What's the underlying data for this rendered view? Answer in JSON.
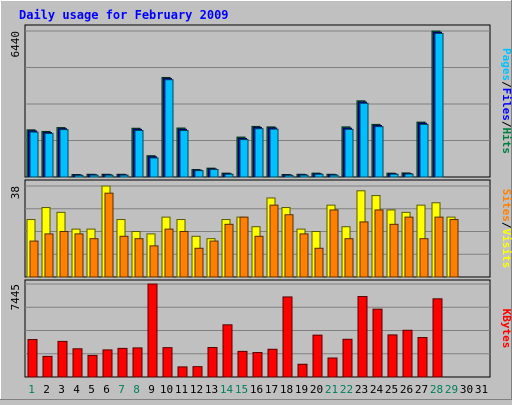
{
  "chart_data": [
    {
      "type": "bar",
      "title": "Daily usage for February 2009",
      "ymax_label": "6440",
      "ylim": [
        0,
        6440
      ],
      "grid": true,
      "legend_words": [
        "Pages",
        "Files",
        "Hits"
      ],
      "legend_seps": [
        "/",
        "/"
      ],
      "categories": [
        "1",
        "2",
        "3",
        "4",
        "5",
        "6",
        "7",
        "8",
        "9",
        "10",
        "11",
        "12",
        "13",
        "14",
        "15",
        "16",
        "17",
        "18",
        "19",
        "20",
        "21",
        "22",
        "23",
        "24",
        "25",
        "26",
        "27",
        "28",
        "29",
        "30",
        "31"
      ],
      "series": [
        {
          "name": "Hits",
          "color": "#008040",
          "values": [
            2080,
            2010,
            2180,
            110,
            120,
            120,
            120,
            2150,
            940,
            4390,
            2160,
            330,
            390,
            170,
            1760,
            2230,
            2210,
            110,
            120,
            170,
            120,
            2210,
            3360,
            2320,
            170,
            180,
            2420,
            6440,
            0,
            0,
            0
          ]
        },
        {
          "name": "Files",
          "color": "#0000ff",
          "values": [
            2030,
            1960,
            2130,
            90,
            100,
            100,
            100,
            2100,
            890,
            4340,
            2100,
            300,
            350,
            140,
            1700,
            2180,
            2160,
            90,
            100,
            140,
            100,
            2150,
            3300,
            2270,
            140,
            150,
            2370,
            6380,
            0,
            0,
            0
          ]
        },
        {
          "name": "Pages",
          "color": "#00c0ff",
          "values": [
            1980,
            1920,
            2090,
            70,
            80,
            80,
            80,
            2050,
            840,
            4290,
            2050,
            280,
            330,
            120,
            1650,
            2130,
            2110,
            70,
            80,
            120,
            80,
            2100,
            3250,
            2220,
            120,
            130,
            2320,
            6330,
            0,
            0,
            0
          ]
        }
      ]
    },
    {
      "type": "bar",
      "ymax_label": "38",
      "ylim": [
        0,
        38
      ],
      "grid": true,
      "legend_words": [
        "Sites",
        "Visits"
      ],
      "legend_seps": [
        "/"
      ],
      "categories": [
        "1",
        "2",
        "3",
        "4",
        "5",
        "6",
        "7",
        "8",
        "9",
        "10",
        "11",
        "12",
        "13",
        "14",
        "15",
        "16",
        "17",
        "18",
        "19",
        "20",
        "21",
        "22",
        "23",
        "24",
        "25",
        "26",
        "27",
        "28",
        "29",
        "30",
        "31"
      ],
      "series": [
        {
          "name": "Visits",
          "color": "#ffff00",
          "values": [
            24,
            29,
            27,
            20,
            20,
            38,
            24,
            19,
            18,
            25,
            24,
            17,
            16,
            24,
            25,
            21,
            33,
            29,
            20,
            19,
            30,
            21,
            36,
            34,
            28,
            27,
            30,
            31,
            25,
            0,
            0
          ]
        },
        {
          "name": "Sites",
          "color": "#ff8000",
          "values": [
            15,
            18,
            19,
            18,
            16,
            35,
            17,
            16,
            13,
            20,
            19,
            12,
            15,
            22,
            25,
            17,
            30,
            26,
            18,
            12,
            28,
            16,
            23,
            28,
            22,
            25,
            16,
            25,
            24,
            0,
            0
          ]
        }
      ]
    },
    {
      "type": "bar",
      "ymax_label": "7445",
      "ylim": [
        0,
        7445
      ],
      "grid": true,
      "legend_words": [
        "KBytes"
      ],
      "legend_seps": [],
      "categories": [
        "1",
        "2",
        "3",
        "4",
        "5",
        "6",
        "7",
        "8",
        "9",
        "10",
        "11",
        "12",
        "13",
        "14",
        "15",
        "16",
        "17",
        "18",
        "19",
        "20",
        "21",
        "22",
        "23",
        "24",
        "25",
        "26",
        "27",
        "28",
        "29",
        "30",
        "31"
      ],
      "series": [
        {
          "name": "KBytes",
          "color": "#ff0000",
          "values": [
            3000,
            1650,
            2850,
            2260,
            1730,
            2170,
            2290,
            2330,
            7445,
            2350,
            810,
            830,
            2360,
            4180,
            2050,
            1960,
            2220,
            6410,
            1020,
            3350,
            1520,
            3020,
            6440,
            5430,
            3370,
            3740,
            3160,
            6260,
            0,
            0,
            0
          ]
        }
      ]
    }
  ],
  "xaxis": {
    "labels": [
      "1",
      "2",
      "3",
      "4",
      "5",
      "6",
      "7",
      "8",
      "9",
      "10",
      "11",
      "12",
      "13",
      "14",
      "15",
      "16",
      "17",
      "18",
      "19",
      "20",
      "21",
      "22",
      "23",
      "24",
      "25",
      "26",
      "27",
      "28",
      "29",
      "30",
      "31"
    ],
    "weekend_days": [
      1,
      7,
      8,
      14,
      15,
      21,
      22,
      28,
      29
    ],
    "weekend_color": "#00805c",
    "weekday_color": "#000000"
  },
  "colors": {
    "background": "#c0c0c0",
    "grid": "#808080",
    "title": "#0000ff",
    "axis_text": "#000000",
    "separator": "#000000"
  }
}
